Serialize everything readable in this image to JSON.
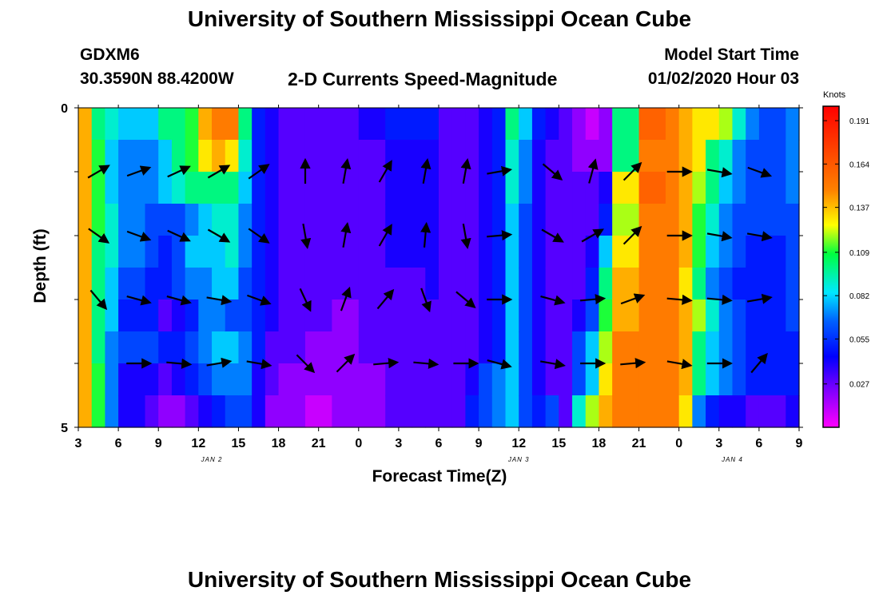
{
  "header": {
    "title_top": "University of Southern Mississippi Ocean Cube",
    "title_bottom": "University of Southern Mississippi Ocean Cube",
    "station": "GDXM6",
    "coords": "30.3590N 88.4200W",
    "plot_title": "2-D Currents Speed-Magnitude",
    "model_start_label": "Model Start Time",
    "model_start_value": "01/02/2020 Hour 03"
  },
  "chart_data": {
    "type": "heatmap",
    "title": "2-D Currents Speed-Magnitude",
    "xlabel": "Forecast Time(Z)",
    "ylabel": "Depth (ft)",
    "x_start_hour": 3,
    "x_end_hour": 57,
    "x_tick_labels": [
      "3",
      "6",
      "9",
      "12",
      "15",
      "18",
      "21",
      "0",
      "3",
      "6",
      "9",
      "12",
      "15",
      "18",
      "21",
      "0",
      "3",
      "6",
      "9"
    ],
    "date_labels": [
      {
        "label": "JAN 2",
        "hour": 13
      },
      {
        "label": "JAN 3",
        "hour": 36
      },
      {
        "label": "JAN 4",
        "hour": 52
      }
    ],
    "y_tick_labels": [
      "0",
      "5"
    ],
    "ylim": [
      0,
      5
    ],
    "depth_rows": [
      0.25,
      0.75,
      1.25,
      1.75,
      2.25,
      2.75,
      3.25,
      3.75,
      4.25,
      4.75
    ],
    "colorbar": {
      "unit_label": "Knots",
      "min": 0.0,
      "max": 0.2,
      "tick_values": [
        "0.191",
        "0.164",
        "0.137",
        "0.109",
        "0.082",
        "0.055",
        "0.027"
      ]
    },
    "speed_profile": [
      {
        "hour": 3,
        "s": [
          0.14,
          0.14,
          0.14,
          0.14,
          0.14,
          0.14,
          0.14,
          0.14,
          0.14,
          0.14
        ]
      },
      {
        "hour": 4,
        "s": [
          0.1,
          0.11,
          0.11,
          0.11,
          0.1,
          0.1,
          0.1,
          0.1,
          0.11,
          0.11
        ]
      },
      {
        "hour": 5,
        "s": [
          0.09,
          0.08,
          0.08,
          0.09,
          0.09,
          0.08,
          0.08,
          0.07,
          0.07,
          0.07
        ]
      },
      {
        "hour": 6,
        "s": [
          0.08,
          0.07,
          0.07,
          0.07,
          0.07,
          0.06,
          0.05,
          0.06,
          0.04,
          0.04
        ]
      },
      {
        "hour": 8,
        "s": [
          0.08,
          0.07,
          0.07,
          0.06,
          0.06,
          0.05,
          0.05,
          0.06,
          0.04,
          0.03
        ]
      },
      {
        "hour": 9,
        "s": [
          0.1,
          0.08,
          0.08,
          0.06,
          0.05,
          0.05,
          0.03,
          0.05,
          0.03,
          0.02
        ]
      },
      {
        "hour": 10,
        "s": [
          0.1,
          0.1,
          0.09,
          0.06,
          0.06,
          0.06,
          0.04,
          0.05,
          0.04,
          0.02
        ]
      },
      {
        "hour": 11,
        "s": [
          0.11,
          0.11,
          0.1,
          0.07,
          0.08,
          0.07,
          0.05,
          0.06,
          0.05,
          0.03
        ]
      },
      {
        "hour": 12,
        "s": [
          0.14,
          0.13,
          0.1,
          0.08,
          0.08,
          0.07,
          0.07,
          0.07,
          0.06,
          0.04
        ]
      },
      {
        "hour": 13,
        "s": [
          0.15,
          0.14,
          0.1,
          0.09,
          0.08,
          0.08,
          0.07,
          0.08,
          0.07,
          0.05
        ]
      },
      {
        "hour": 14,
        "s": [
          0.15,
          0.13,
          0.1,
          0.09,
          0.09,
          0.08,
          0.06,
          0.08,
          0.07,
          0.06
        ]
      },
      {
        "hour": 15,
        "s": [
          0.1,
          0.09,
          0.08,
          0.07,
          0.07,
          0.06,
          0.06,
          0.07,
          0.07,
          0.06
        ]
      },
      {
        "hour": 16,
        "s": [
          0.05,
          0.05,
          0.05,
          0.05,
          0.05,
          0.05,
          0.05,
          0.05,
          0.04,
          0.04
        ]
      },
      {
        "hour": 17,
        "s": [
          0.04,
          0.04,
          0.04,
          0.04,
          0.04,
          0.04,
          0.04,
          0.03,
          0.03,
          0.02
        ]
      },
      {
        "hour": 18,
        "s": [
          0.03,
          0.03,
          0.03,
          0.03,
          0.03,
          0.03,
          0.03,
          0.03,
          0.02,
          0.02
        ]
      },
      {
        "hour": 20,
        "s": [
          0.03,
          0.03,
          0.03,
          0.03,
          0.03,
          0.03,
          0.03,
          0.02,
          0.02,
          0.01
        ]
      },
      {
        "hour": 22,
        "s": [
          0.03,
          0.03,
          0.03,
          0.03,
          0.03,
          0.03,
          0.02,
          0.02,
          0.02,
          0.02
        ]
      },
      {
        "hour": 24,
        "s": [
          0.04,
          0.03,
          0.03,
          0.03,
          0.03,
          0.03,
          0.03,
          0.03,
          0.02,
          0.02
        ]
      },
      {
        "hour": 26,
        "s": [
          0.05,
          0.04,
          0.04,
          0.04,
          0.04,
          0.03,
          0.03,
          0.03,
          0.03,
          0.03
        ]
      },
      {
        "hour": 28,
        "s": [
          0.05,
          0.04,
          0.04,
          0.04,
          0.04,
          0.03,
          0.03,
          0.03,
          0.03,
          0.03
        ]
      },
      {
        "hour": 29,
        "s": [
          0.05,
          0.04,
          0.04,
          0.04,
          0.04,
          0.04,
          0.03,
          0.03,
          0.03,
          0.03
        ]
      },
      {
        "hour": 30,
        "s": [
          0.03,
          0.03,
          0.03,
          0.03,
          0.03,
          0.03,
          0.03,
          0.03,
          0.03,
          0.03
        ]
      },
      {
        "hour": 31,
        "s": [
          0.03,
          0.03,
          0.03,
          0.03,
          0.03,
          0.03,
          0.03,
          0.03,
          0.03,
          0.03
        ]
      },
      {
        "hour": 32,
        "s": [
          0.03,
          0.03,
          0.03,
          0.03,
          0.03,
          0.03,
          0.03,
          0.03,
          0.04,
          0.05
        ]
      },
      {
        "hour": 33,
        "s": [
          0.04,
          0.04,
          0.04,
          0.04,
          0.04,
          0.04,
          0.04,
          0.04,
          0.06,
          0.06
        ]
      },
      {
        "hour": 34,
        "s": [
          0.05,
          0.05,
          0.05,
          0.05,
          0.05,
          0.05,
          0.05,
          0.05,
          0.07,
          0.07
        ]
      },
      {
        "hour": 35,
        "s": [
          0.1,
          0.09,
          0.09,
          0.08,
          0.08,
          0.08,
          0.08,
          0.08,
          0.08,
          0.08
        ]
      },
      {
        "hour": 36,
        "s": [
          0.08,
          0.07,
          0.07,
          0.06,
          0.06,
          0.06,
          0.06,
          0.06,
          0.06,
          0.06
        ]
      },
      {
        "hour": 37,
        "s": [
          0.05,
          0.04,
          0.04,
          0.04,
          0.04,
          0.04,
          0.04,
          0.04,
          0.04,
          0.05
        ]
      },
      {
        "hour": 38,
        "s": [
          0.04,
          0.03,
          0.03,
          0.03,
          0.03,
          0.03,
          0.03,
          0.03,
          0.03,
          0.06
        ]
      },
      {
        "hour": 39,
        "s": [
          0.03,
          0.03,
          0.03,
          0.03,
          0.03,
          0.03,
          0.03,
          0.03,
          0.03,
          0.03
        ]
      },
      {
        "hour": 40,
        "s": [
          0.02,
          0.02,
          0.03,
          0.03,
          0.03,
          0.03,
          0.04,
          0.06,
          0.06,
          0.09
        ]
      },
      {
        "hour": 41,
        "s": [
          0.01,
          0.02,
          0.03,
          0.03,
          0.04,
          0.05,
          0.06,
          0.08,
          0.08,
          0.12
        ]
      },
      {
        "hour": 42,
        "s": [
          0.02,
          0.02,
          0.04,
          0.05,
          0.08,
          0.1,
          0.11,
          0.12,
          0.13,
          0.14
        ]
      },
      {
        "hour": 43,
        "s": [
          0.1,
          0.1,
          0.13,
          0.12,
          0.13,
          0.14,
          0.14,
          0.15,
          0.15,
          0.15
        ]
      },
      {
        "hour": 45,
        "s": [
          0.16,
          0.15,
          0.16,
          0.15,
          0.15,
          0.15,
          0.15,
          0.15,
          0.15,
          0.15
        ]
      },
      {
        "hour": 47,
        "s": [
          0.15,
          0.15,
          0.15,
          0.15,
          0.15,
          0.15,
          0.15,
          0.15,
          0.15,
          0.15
        ]
      },
      {
        "hour": 48,
        "s": [
          0.14,
          0.14,
          0.14,
          0.14,
          0.14,
          0.13,
          0.14,
          0.14,
          0.14,
          0.13
        ]
      },
      {
        "hour": 49,
        "s": [
          0.13,
          0.13,
          0.12,
          0.11,
          0.11,
          0.1,
          0.12,
          0.1,
          0.1,
          0.07
        ]
      },
      {
        "hour": 50,
        "s": [
          0.13,
          0.1,
          0.1,
          0.09,
          0.08,
          0.07,
          0.09,
          0.08,
          0.08,
          0.05
        ]
      },
      {
        "hour": 51,
        "s": [
          0.12,
          0.09,
          0.08,
          0.07,
          0.07,
          0.06,
          0.07,
          0.07,
          0.07,
          0.04
        ]
      },
      {
        "hour": 52,
        "s": [
          0.09,
          0.07,
          0.07,
          0.06,
          0.06,
          0.05,
          0.06,
          0.06,
          0.06,
          0.04
        ]
      },
      {
        "hour": 53,
        "s": [
          0.07,
          0.06,
          0.06,
          0.06,
          0.05,
          0.05,
          0.05,
          0.05,
          0.05,
          0.03
        ]
      },
      {
        "hour": 54,
        "s": [
          0.06,
          0.06,
          0.06,
          0.06,
          0.05,
          0.05,
          0.05,
          0.05,
          0.05,
          0.03
        ]
      },
      {
        "hour": 56,
        "s": [
          0.07,
          0.07,
          0.07,
          0.06,
          0.06,
          0.06,
          0.06,
          0.05,
          0.05,
          0.04
        ]
      },
      {
        "hour": 57,
        "s": [
          0.08,
          0.07,
          0.07,
          0.07,
          0.06,
          0.06,
          0.06,
          0.06,
          0.06,
          0.04
        ]
      }
    ],
    "vector_rows": [
      {
        "depth": 1.0,
        "vectors": [
          {
            "hour": 4.5,
            "dir": -30,
            "len": 1
          },
          {
            "hour": 7.5,
            "dir": -20,
            "len": 1
          },
          {
            "hour": 10.5,
            "dir": -25,
            "len": 1
          },
          {
            "hour": 13.5,
            "dir": -30,
            "len": 1
          },
          {
            "hour": 16.5,
            "dir": -35,
            "len": 1
          },
          {
            "hour": 20,
            "dir": -90,
            "len": 1
          },
          {
            "hour": 23,
            "dir": -80,
            "len": 1
          },
          {
            "hour": 26,
            "dir": -60,
            "len": 1
          },
          {
            "hour": 29,
            "dir": -80,
            "len": 1
          },
          {
            "hour": 32,
            "dir": -80,
            "len": 1
          },
          {
            "hour": 34.5,
            "dir": -10,
            "len": 1
          },
          {
            "hour": 38.5,
            "dir": 40,
            "len": 1
          },
          {
            "hour": 41.5,
            "dir": -75,
            "len": 1
          },
          {
            "hour": 44.5,
            "dir": -45,
            "len": 1
          },
          {
            "hour": 48,
            "dir": 0,
            "len": 1
          },
          {
            "hour": 51,
            "dir": 10,
            "len": 1
          },
          {
            "hour": 54,
            "dir": 20,
            "len": 1
          }
        ]
      },
      {
        "depth": 2.0,
        "vectors": [
          {
            "hour": 4.5,
            "dir": 35,
            "len": 1
          },
          {
            "hour": 7.5,
            "dir": 20,
            "len": 1
          },
          {
            "hour": 10.5,
            "dir": 25,
            "len": 1
          },
          {
            "hour": 13.5,
            "dir": 30,
            "len": 1
          },
          {
            "hour": 16.5,
            "dir": 35,
            "len": 1
          },
          {
            "hour": 20,
            "dir": 80,
            "len": 1
          },
          {
            "hour": 23,
            "dir": -80,
            "len": 1
          },
          {
            "hour": 26,
            "dir": -60,
            "len": 1
          },
          {
            "hour": 29,
            "dir": -85,
            "len": 1
          },
          {
            "hour": 32,
            "dir": 80,
            "len": 1
          },
          {
            "hour": 34.5,
            "dir": -5,
            "len": 1
          },
          {
            "hour": 38.5,
            "dir": 30,
            "len": 1
          },
          {
            "hour": 41.5,
            "dir": -30,
            "len": 1
          },
          {
            "hour": 44.5,
            "dir": -45,
            "len": 1
          },
          {
            "hour": 48,
            "dir": 0,
            "len": 1
          },
          {
            "hour": 51,
            "dir": 10,
            "len": 1
          },
          {
            "hour": 54,
            "dir": 10,
            "len": 1
          }
        ]
      },
      {
        "depth": 3.0,
        "vectors": [
          {
            "hour": 4.5,
            "dir": 50,
            "len": 1
          },
          {
            "hour": 7.5,
            "dir": 15,
            "len": 1
          },
          {
            "hour": 10.5,
            "dir": 15,
            "len": 1
          },
          {
            "hour": 13.5,
            "dir": 10,
            "len": 1
          },
          {
            "hour": 16.5,
            "dir": 20,
            "len": 1
          },
          {
            "hour": 20,
            "dir": 65,
            "len": 1
          },
          {
            "hour": 23,
            "dir": -70,
            "len": 1
          },
          {
            "hour": 26,
            "dir": -50,
            "len": 1
          },
          {
            "hour": 29,
            "dir": 70,
            "len": 1
          },
          {
            "hour": 32,
            "dir": 40,
            "len": 1
          },
          {
            "hour": 34.5,
            "dir": 0,
            "len": 1
          },
          {
            "hour": 38.5,
            "dir": 15,
            "len": 1
          },
          {
            "hour": 41.5,
            "dir": -5,
            "len": 1
          },
          {
            "hour": 44.5,
            "dir": -20,
            "len": 1
          },
          {
            "hour": 48,
            "dir": 5,
            "len": 1
          },
          {
            "hour": 51,
            "dir": 5,
            "len": 1
          },
          {
            "hour": 54,
            "dir": -10,
            "len": 1
          }
        ]
      },
      {
        "depth": 4.0,
        "vectors": [
          {
            "hour": 7.5,
            "dir": 0,
            "len": 1
          },
          {
            "hour": 10.5,
            "dir": 5,
            "len": 1
          },
          {
            "hour": 13.5,
            "dir": -10,
            "len": 1
          },
          {
            "hour": 16.5,
            "dir": 10,
            "len": 1
          },
          {
            "hour": 20,
            "dir": 45,
            "len": 1
          },
          {
            "hour": 23,
            "dir": -45,
            "len": 1
          },
          {
            "hour": 26,
            "dir": -5,
            "len": 1
          },
          {
            "hour": 29,
            "dir": 5,
            "len": 1
          },
          {
            "hour": 32,
            "dir": 0,
            "len": 1
          },
          {
            "hour": 34.5,
            "dir": 15,
            "len": 1
          },
          {
            "hour": 38.5,
            "dir": 10,
            "len": 1
          },
          {
            "hour": 41.5,
            "dir": 0,
            "len": 1
          },
          {
            "hour": 44.5,
            "dir": -5,
            "len": 1
          },
          {
            "hour": 48,
            "dir": 10,
            "len": 1
          },
          {
            "hour": 51,
            "dir": 0,
            "len": 1
          },
          {
            "hour": 54,
            "dir": -50,
            "len": 1
          }
        ]
      }
    ]
  }
}
